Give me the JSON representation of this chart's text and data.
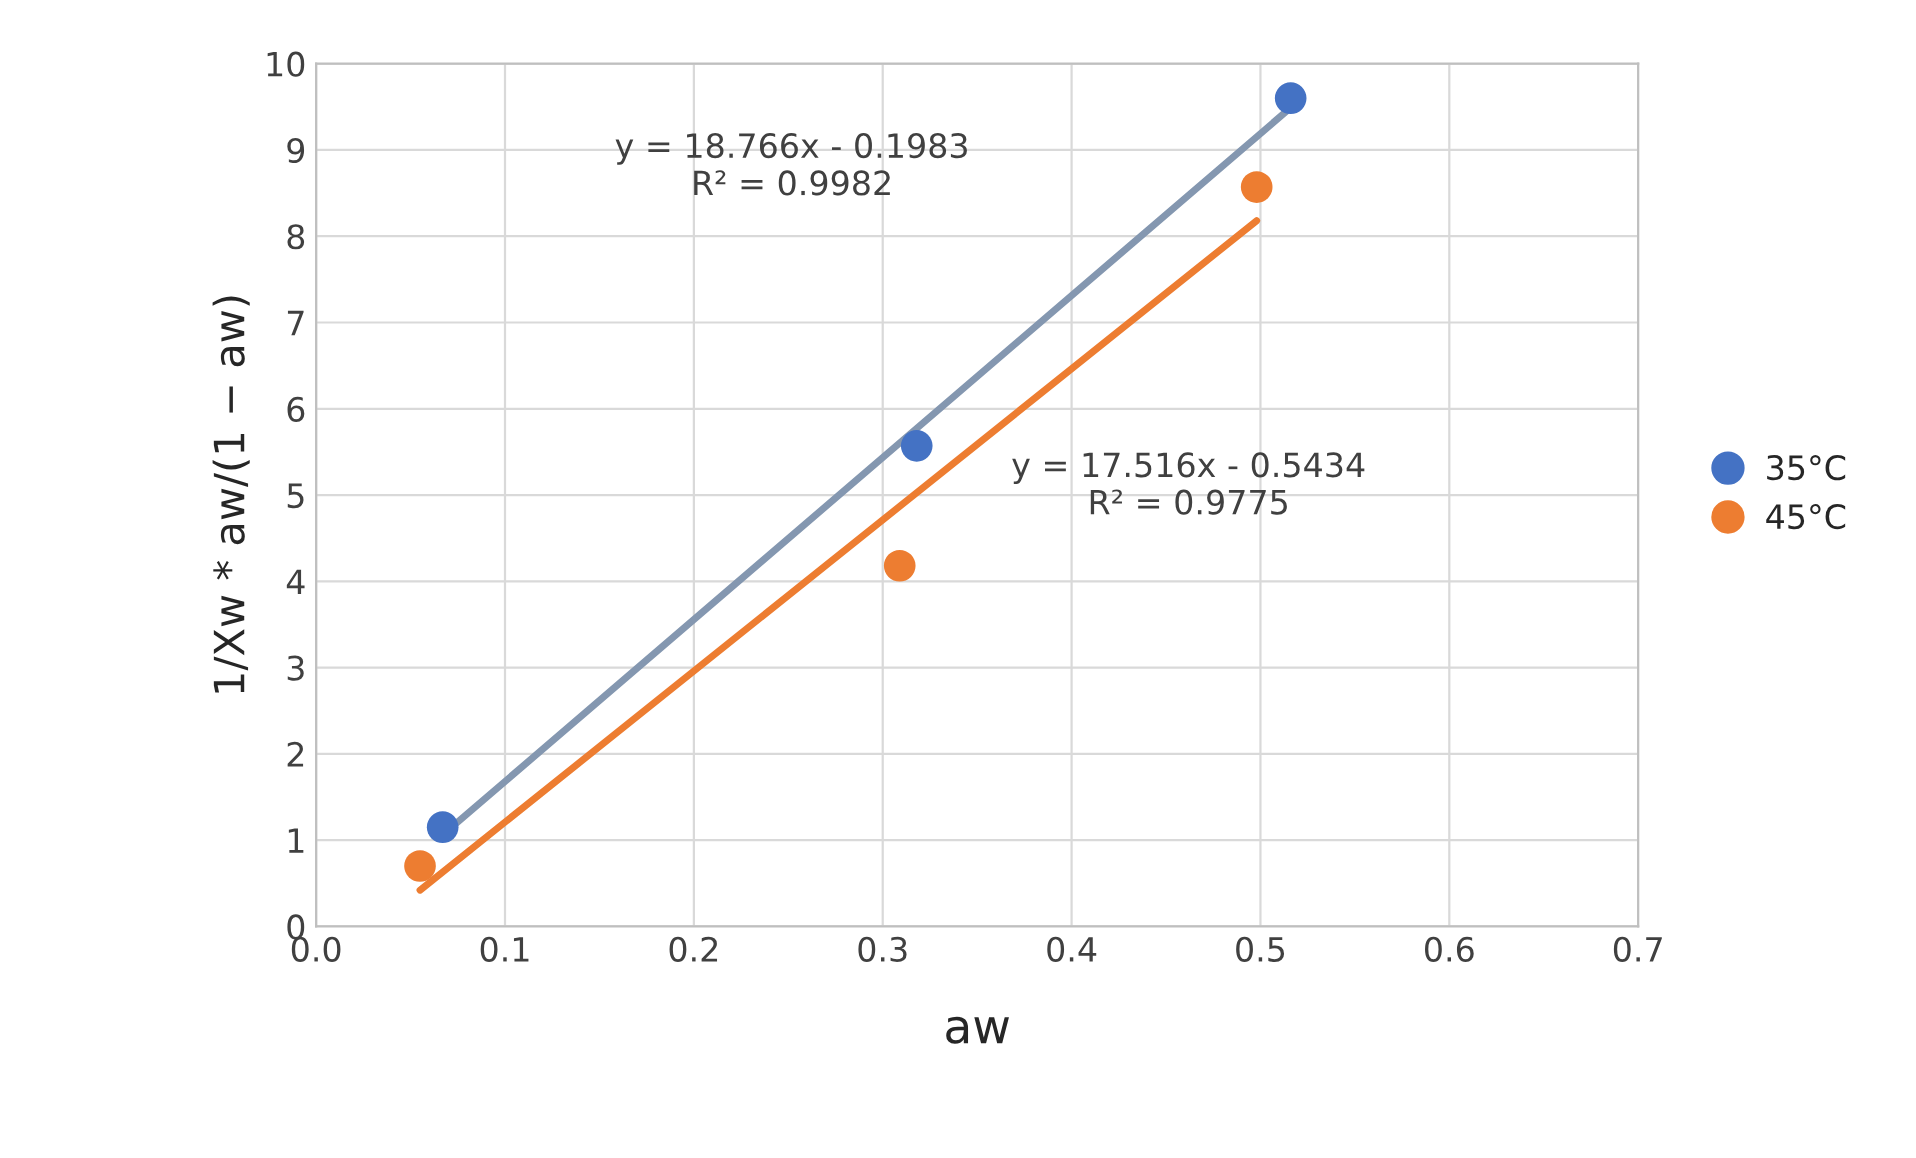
{
  "chart_data": {
    "type": "scatter",
    "xlabel": "aw",
    "ylabel": "1/Xw * aw/(1 − aw)",
    "series": [
      {
        "name": "35°C",
        "color": "#4472c4",
        "marker": "circle",
        "x": [
          0.067,
          0.318,
          0.516
        ],
        "values": [
          1.15,
          5.57,
          9.6
        ]
      },
      {
        "name": "45°C",
        "color": "#ed7d31",
        "marker": "circle",
        "x": [
          0.055,
          0.309,
          0.498
        ],
        "values": [
          0.7,
          4.18,
          8.57
        ]
      },
      {
        "type": "line",
        "color": "#8497b0",
        "marker": "none",
        "x": [
          0.067,
          0.516
        ],
        "values": [
          1.06,
          9.49
        ]
      },
      {
        "type": "line",
        "color": "#ed7d31",
        "marker": "none",
        "x": [
          0.055,
          0.498
        ],
        "values": [
          0.42,
          8.18
        ]
      }
    ],
    "annotations": [
      "y = 18.766x - 0.1983\nR² = 0.9982",
      "y = 17.516x - 0.5434\nR² = 0.9775"
    ],
    "xlim": [
      0,
      0.7
    ],
    "xticks": [
      {
        "value": 0,
        "label": "0.0"
      },
      {
        "value": 0.1,
        "label": "0.1"
      },
      {
        "value": 0.2,
        "label": "0.2"
      },
      {
        "value": 0.3,
        "label": "0.3"
      },
      {
        "value": 0.4,
        "label": "0.4"
      },
      {
        "value": 0.5,
        "label": "0.5"
      },
      {
        "value": 0.6,
        "label": "0.6"
      },
      {
        "value": 0.7,
        "label": "0.7"
      }
    ],
    "ylim": [
      0,
      10
    ],
    "yticks": [
      0,
      1,
      2,
      3,
      4,
      5,
      6,
      7,
      8,
      9,
      10
    ],
    "grid": true,
    "legend": "right"
  }
}
